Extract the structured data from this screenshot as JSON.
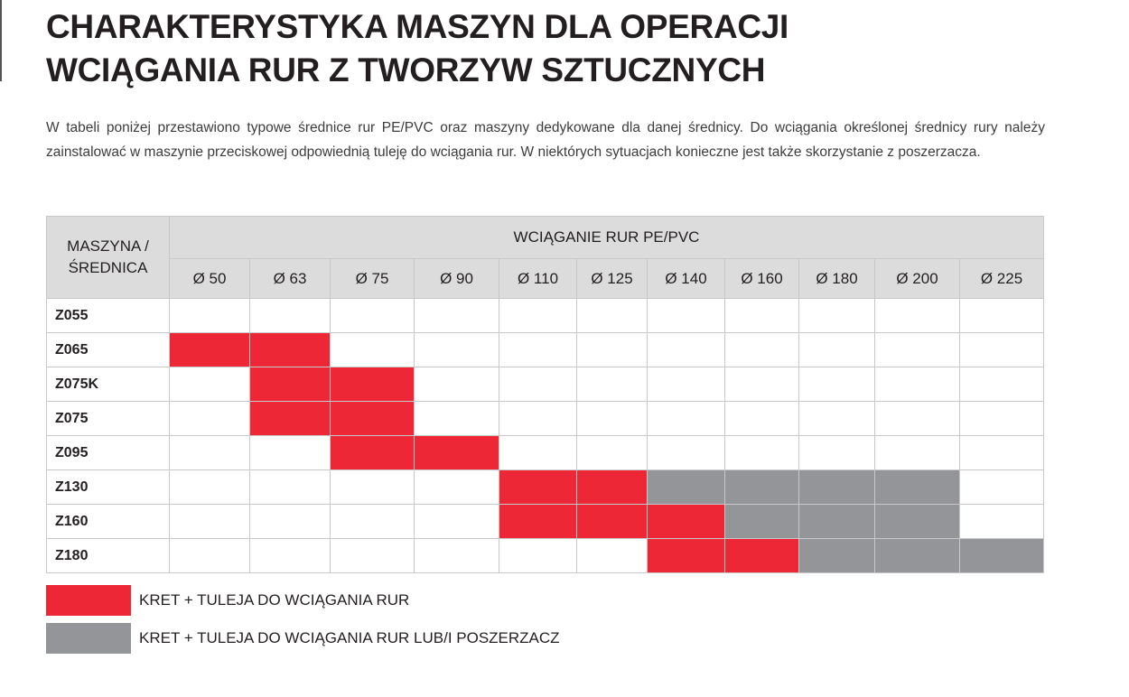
{
  "title_lines": [
    "CHARAKTERYSTYKA MASZYN DLA OPERACJI",
    "WCIĄGANIA RUR Z TWORZYW SZTUCZNYCH"
  ],
  "intro": "W tabeli poniżej przestawiono typowe średnice rur PE/PVC oraz maszyny dedykowane dla danej średnicy. Do wciągania określonej średnicy rury należy zainstalować w maszynie przeciskowej odpowiednią tuleję do wciągania rur. W niektórych sytuacjach konieczne jest także skorzystanie z poszerzacza.",
  "colors": {
    "red": "#ee2737",
    "gray": "#939598",
    "header": "#dcdcdd"
  },
  "table": {
    "corner": "MASZYNA / ŚREDNICA",
    "group_header": "WCIĄGANIE RUR PE/PVC",
    "columns": [
      "Ø 50",
      "Ø 63",
      "Ø 75",
      "Ø 90",
      "Ø 110",
      "Ø 125",
      "Ø 140",
      "Ø 160",
      "Ø 180",
      "Ø 200",
      "Ø 225"
    ],
    "rows": [
      {
        "machine": "Z055",
        "cells": [
          "",
          "",
          "",
          "",
          "",
          "",
          "",
          "",
          "",
          "",
          ""
        ]
      },
      {
        "machine": "Z065",
        "cells": [
          "r",
          "r",
          "",
          "",
          "",
          "",
          "",
          "",
          "",
          "",
          ""
        ]
      },
      {
        "machine": "Z075K",
        "cells": [
          "",
          "r",
          "r",
          "",
          "",
          "",
          "",
          "",
          "",
          "",
          ""
        ]
      },
      {
        "machine": "Z075",
        "cells": [
          "",
          "r",
          "r",
          "",
          "",
          "",
          "",
          "",
          "",
          "",
          ""
        ]
      },
      {
        "machine": "Z095",
        "cells": [
          "",
          "",
          "r",
          "r",
          "",
          "",
          "",
          "",
          "",
          "",
          ""
        ]
      },
      {
        "machine": "Z130",
        "cells": [
          "",
          "",
          "",
          "",
          "r",
          "r",
          "g",
          "g",
          "g",
          "g",
          ""
        ]
      },
      {
        "machine": "Z160",
        "cells": [
          "",
          "",
          "",
          "",
          "r",
          "r",
          "r",
          "g",
          "g",
          "g",
          ""
        ]
      },
      {
        "machine": "Z180",
        "cells": [
          "",
          "",
          "",
          "",
          "",
          "",
          "r",
          "r",
          "g",
          "g",
          "g"
        ]
      }
    ]
  },
  "legend": [
    {
      "key": "r",
      "label": "KRET + TULEJA DO WCIĄGANIA RUR"
    },
    {
      "key": "g",
      "label": "KRET + TULEJA DO WCIĄGANIA RUR LUB/I  POSZERZACZ"
    }
  ]
}
